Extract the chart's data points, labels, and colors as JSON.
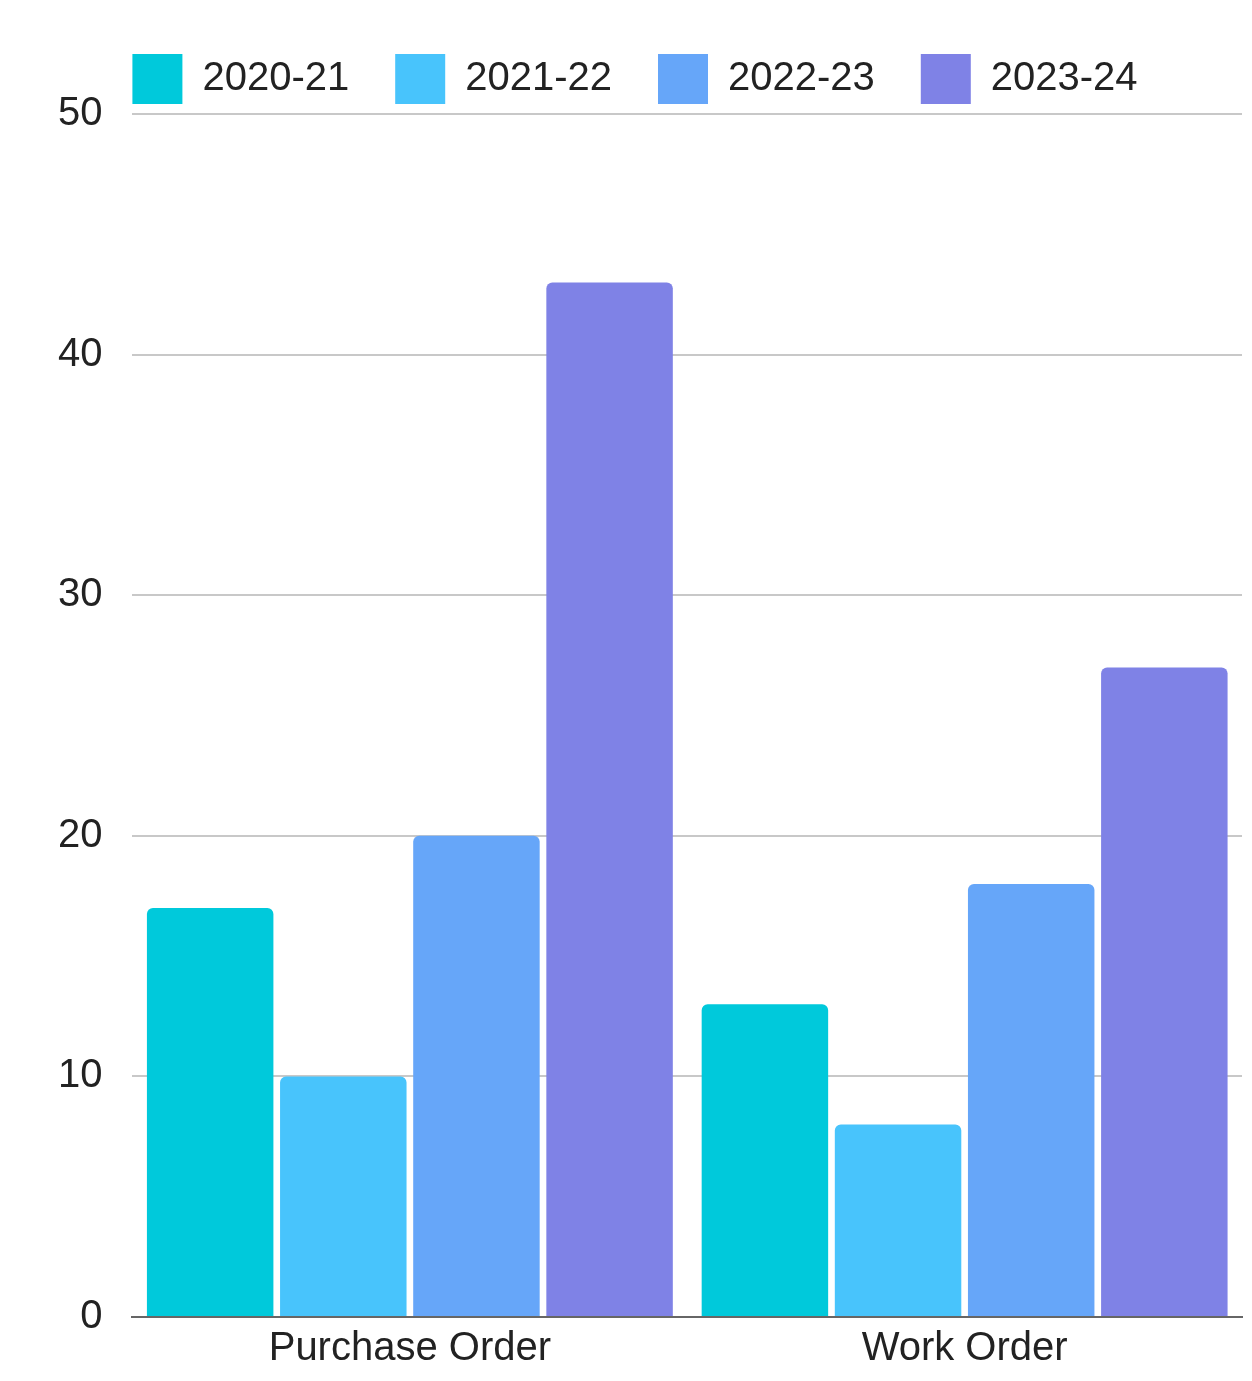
{
  "chart_data": {
    "type": "bar",
    "categories": [
      "Purchase Order",
      "Work Order"
    ],
    "series": [
      {
        "name": "2020-21",
        "color": "#00c9db",
        "values": [
          17,
          13
        ]
      },
      {
        "name": "2021-22",
        "color": "#48c4fc",
        "values": [
          10,
          8
        ]
      },
      {
        "name": "2022-23",
        "color": "#66a6f9",
        "values": [
          20,
          18
        ]
      },
      {
        "name": "2023-24",
        "color": "#7f82e6",
        "values": [
          43,
          27
        ]
      }
    ],
    "ylim": [
      0,
      50
    ],
    "yticks": [
      0,
      10,
      20,
      30,
      40,
      50
    ],
    "grid": "y",
    "legend": "top"
  }
}
